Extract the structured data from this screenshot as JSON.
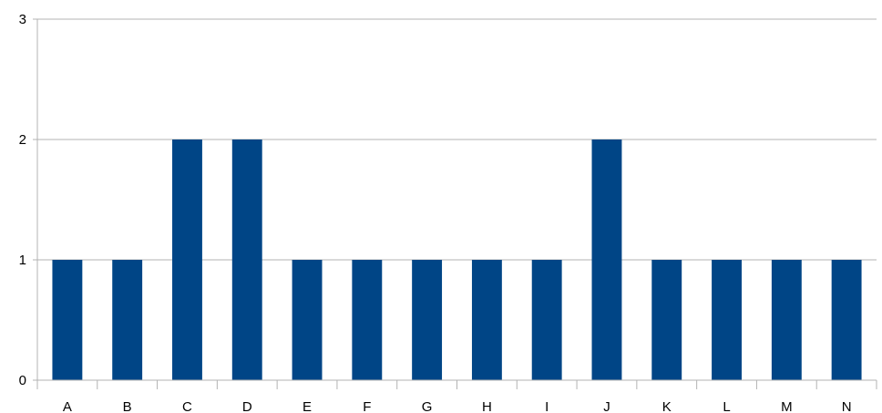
{
  "chart_data": {
    "type": "bar",
    "categories": [
      "A",
      "B",
      "C",
      "D",
      "E",
      "F",
      "G",
      "H",
      "I",
      "J",
      "K",
      "L",
      "M",
      "N"
    ],
    "values": [
      1,
      1,
      2,
      2,
      1,
      1,
      1,
      1,
      1,
      2,
      1,
      1,
      1,
      1
    ],
    "title": "",
    "xlabel": "",
    "ylabel": "",
    "ylim": [
      0,
      3
    ],
    "yticks": [
      0,
      1,
      2,
      3
    ],
    "grid": "horizontal",
    "legend": "none",
    "bar_color": "#004586",
    "grid_color": "#b3b3b3",
    "axis_color": "#b3b3b3"
  }
}
